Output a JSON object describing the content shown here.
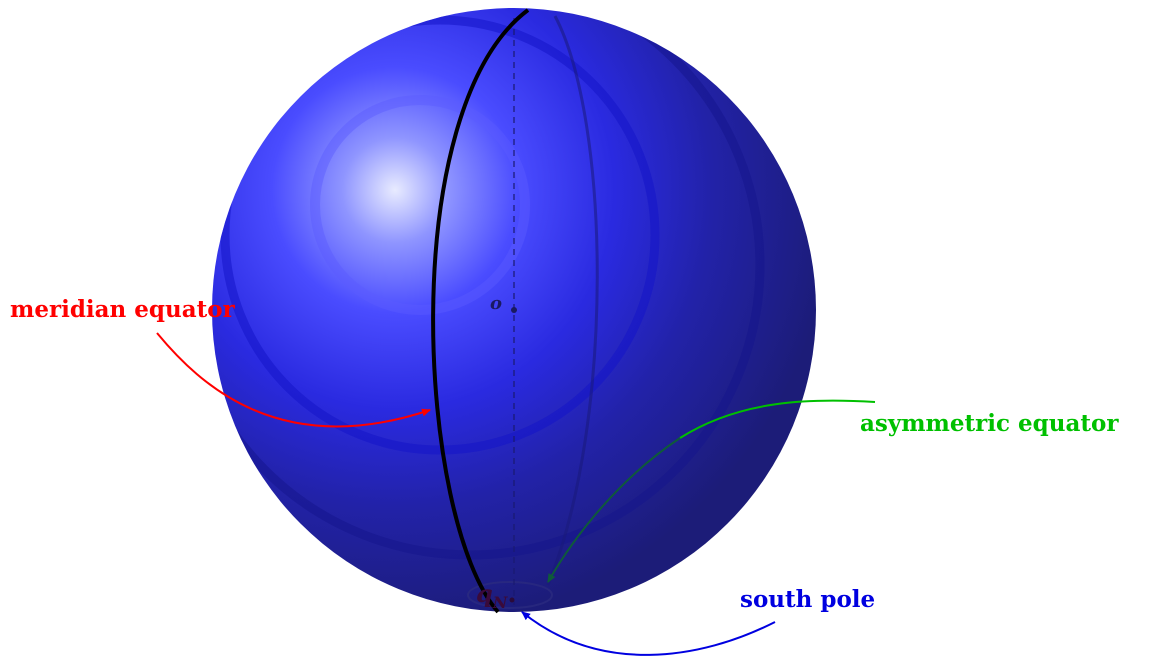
{
  "labels": {
    "meridian": "meridian equator",
    "asymmetric": "asymmetric equator",
    "south_pole": "south pole",
    "center": "o",
    "pole_point": "q",
    "pole_subscript": "N"
  },
  "colors": {
    "meridian": "#ff0000",
    "asymmetric": "#00c000",
    "south_pole": "#0000e0",
    "sphere_highlight": "#e6e9ff",
    "sphere_mid": "#3a3aff",
    "sphere_dark": "#1e1e80",
    "meridian_curve": "#000000"
  }
}
